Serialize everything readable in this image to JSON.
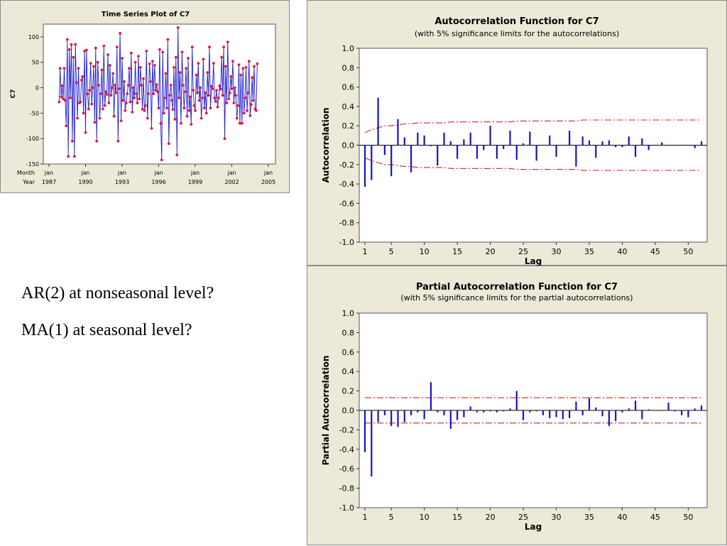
{
  "questions": [
    "AR(2) at nonseasonal level?",
    "MA(1) at seasonal level?"
  ],
  "colors": {
    "panel_bg": "#ece9d8",
    "bar": "#1414c8",
    "limit": "#dc1e1e",
    "series_line": "#1f1fd0",
    "series_marker": "#e8143c"
  },
  "chart_data": [
    {
      "type": "line",
      "title": "Time Series Plot of C7",
      "ylabel": "C7",
      "ylim": [
        -150,
        125
      ],
      "yticks": [
        100,
        50,
        0,
        -50,
        -100,
        -150
      ],
      "xaxis_row_labels": [
        "Month",
        "Year"
      ],
      "xticks": [
        {
          "month": "jan",
          "year": "1987"
        },
        {
          "month": "jan",
          "year": "1990"
        },
        {
          "month": "jan",
          "year": "1993"
        },
        {
          "month": "jan",
          "year": "1996"
        },
        {
          "month": "jan",
          "year": "1999"
        },
        {
          "month": "jan",
          "year": "2002"
        },
        {
          "month": "jan",
          "year": "2005"
        }
      ],
      "series": [
        {
          "start": "1987-11",
          "values": [
            -28,
            38,
            -18,
            4,
            -22,
            38,
            -25,
            -75,
            95,
            -135,
            75,
            -20,
            85,
            -105,
            60,
            -135,
            85,
            10,
            -60,
            38,
            -30,
            -28,
            15,
            22,
            -50,
            72,
            -88,
            74,
            -12,
            -42,
            -5,
            48,
            -32,
            0,
            42,
            -68,
            78,
            -105,
            50,
            5,
            -60,
            -12,
            35,
            -42,
            82,
            -35,
            -8,
            -13,
            65,
            -30,
            44,
            -15,
            0,
            28,
            -56,
            5,
            -10,
            80,
            -105,
            -2,
            107,
            -65,
            58,
            -25,
            12,
            -45,
            -30,
            -12,
            5,
            38,
            -28,
            68,
            -48,
            0,
            -20,
            50,
            -12,
            -30,
            62,
            -22,
            40,
            5,
            -42,
            18,
            -45,
            -35,
            72,
            -60,
            -12,
            47,
            12,
            -80,
            52,
            -12,
            44,
            -5,
            6,
            -8,
            -40,
            75,
            -70,
            -142,
            70,
            -50,
            -20,
            28,
            -40,
            95,
            -110,
            -15,
            5,
            -25,
            -43,
            40,
            -62,
            60,
            -132,
            118,
            -20,
            30,
            -70,
            70,
            5,
            -40,
            -8,
            38,
            -56,
            58,
            -45,
            -18,
            -72,
            80,
            -5,
            -35,
            -45,
            25,
            -10,
            48,
            -25,
            0,
            -60,
            -20,
            56,
            -40,
            -10,
            -50,
            30,
            -15,
            80,
            -40,
            3,
            -2,
            48,
            -20,
            -27,
            -5,
            -38,
            -20,
            4,
            -3,
            60,
            -15,
            80,
            -100,
            42,
            -30,
            90,
            -22,
            -10,
            22,
            -2,
            52,
            -30,
            0,
            -15,
            -60,
            -35,
            45,
            -70,
            25,
            -70,
            38,
            -50,
            -20,
            40,
            -45,
            -10,
            52,
            -55,
            -33,
            20,
            -25,
            42,
            -42,
            -45,
            47
          ]
        }
      ]
    },
    {
      "type": "bar",
      "title": "Autocorrelation Function for C7",
      "subtitle": "(with 5% significance limits for the autocorrelations)",
      "xlabel": "Lag",
      "ylabel": "Autocorrelation",
      "ylim": [
        -1.0,
        1.0
      ],
      "yticks": [
        "1.0",
        "0.8",
        "0.6",
        "0.4",
        "0.2",
        "0.0",
        "-0.2",
        "-0.4",
        "-0.6",
        "-0.8",
        "-1.0"
      ],
      "xticks": [
        1,
        5,
        10,
        15,
        20,
        25,
        30,
        35,
        40,
        45,
        50
      ],
      "xlim": [
        1,
        52
      ],
      "lags": [
        1,
        2,
        3,
        4,
        5,
        6,
        7,
        8,
        9,
        10,
        11,
        12,
        13,
        14,
        15,
        16,
        17,
        18,
        19,
        20,
        21,
        22,
        23,
        24,
        25,
        26,
        27,
        28,
        29,
        30,
        31,
        32,
        33,
        34,
        35,
        36,
        37,
        38,
        39,
        40,
        41,
        42,
        43,
        44,
        45,
        46,
        47,
        48,
        49,
        50,
        51,
        52
      ],
      "values": [
        -0.43,
        -0.36,
        0.49,
        -0.1,
        -0.32,
        0.27,
        0.08,
        -0.28,
        0.13,
        0.1,
        -0.01,
        -0.21,
        0.13,
        0.04,
        -0.14,
        0.06,
        0.13,
        -0.14,
        -0.05,
        0.2,
        -0.14,
        -0.04,
        0.15,
        -0.15,
        0.02,
        0.14,
        -0.16,
        0.0,
        0.1,
        -0.12,
        0.0,
        0.15,
        -0.22,
        0.09,
        0.05,
        -0.13,
        0.04,
        0.05,
        -0.02,
        -0.02,
        0.09,
        -0.12,
        0.07,
        -0.05,
        0.0,
        0.03,
        0.0,
        0.0,
        0.0,
        0.0,
        -0.03,
        0.04
      ],
      "limit_upper": [
        0.13,
        0.16,
        0.18,
        0.2,
        0.2,
        0.21,
        0.22,
        0.22,
        0.23,
        0.23,
        0.23,
        0.23,
        0.23,
        0.24,
        0.24,
        0.24,
        0.24,
        0.24,
        0.24,
        0.24,
        0.24,
        0.24,
        0.24,
        0.25,
        0.25,
        0.25,
        0.25,
        0.25,
        0.25,
        0.25,
        0.25,
        0.25,
        0.25,
        0.26,
        0.26,
        0.26,
        0.26,
        0.26,
        0.26,
        0.26,
        0.26,
        0.26,
        0.26,
        0.26,
        0.26,
        0.26,
        0.26,
        0.26,
        0.26,
        0.26,
        0.26,
        0.26
      ],
      "limit_lower": [
        -0.13,
        -0.16,
        -0.18,
        -0.2,
        -0.2,
        -0.21,
        -0.22,
        -0.22,
        -0.23,
        -0.23,
        -0.23,
        -0.23,
        -0.23,
        -0.24,
        -0.24,
        -0.24,
        -0.24,
        -0.24,
        -0.24,
        -0.24,
        -0.24,
        -0.24,
        -0.24,
        -0.25,
        -0.25,
        -0.25,
        -0.25,
        -0.25,
        -0.25,
        -0.25,
        -0.25,
        -0.25,
        -0.25,
        -0.26,
        -0.26,
        -0.26,
        -0.26,
        -0.26,
        -0.26,
        -0.26,
        -0.26,
        -0.26,
        -0.26,
        -0.26,
        -0.26,
        -0.26,
        -0.26,
        -0.26,
        -0.26,
        -0.26,
        -0.26,
        -0.26
      ]
    },
    {
      "type": "bar",
      "title": "Partial Autocorrelation Function for C7",
      "subtitle": "(with 5% significance limits for the partial autocorrelations)",
      "xlabel": "Lag",
      "ylabel": "Partial Autocorrelation",
      "ylim": [
        -1.0,
        1.0
      ],
      "yticks": [
        "1.0",
        "0.8",
        "0.6",
        "0.4",
        "0.2",
        "0.0",
        "-0.2",
        "-0.4",
        "-0.6",
        "-0.8",
        "-1.0"
      ],
      "xticks": [
        1,
        5,
        10,
        15,
        20,
        25,
        30,
        35,
        40,
        45,
        50
      ],
      "xlim": [
        1,
        52
      ],
      "lags": [
        1,
        2,
        3,
        4,
        5,
        6,
        7,
        8,
        9,
        10,
        11,
        12,
        13,
        14,
        15,
        16,
        17,
        18,
        19,
        20,
        21,
        22,
        23,
        24,
        25,
        26,
        27,
        28,
        29,
        30,
        31,
        32,
        33,
        34,
        35,
        36,
        37,
        38,
        39,
        40,
        41,
        42,
        43,
        44,
        45,
        46,
        47,
        48,
        49,
        50,
        51,
        52
      ],
      "values": [
        -0.43,
        -0.68,
        -0.12,
        -0.05,
        -0.16,
        -0.17,
        -0.12,
        -0.05,
        -0.02,
        -0.09,
        0.29,
        -0.02,
        -0.05,
        -0.19,
        -0.1,
        -0.07,
        0.04,
        -0.02,
        -0.02,
        -0.01,
        -0.02,
        -0.01,
        0.02,
        0.2,
        -0.1,
        -0.02,
        -0.01,
        -0.05,
        -0.08,
        -0.07,
        -0.09,
        -0.08,
        0.09,
        -0.05,
        0.13,
        0.03,
        -0.06,
        -0.16,
        -0.11,
        -0.02,
        0.02,
        0.1,
        -0.09,
        0.01,
        0.0,
        0.0,
        0.08,
        -0.01,
        -0.05,
        -0.07,
        0.02,
        0.05
      ],
      "limit_upper": 0.13,
      "limit_lower": -0.13
    }
  ]
}
